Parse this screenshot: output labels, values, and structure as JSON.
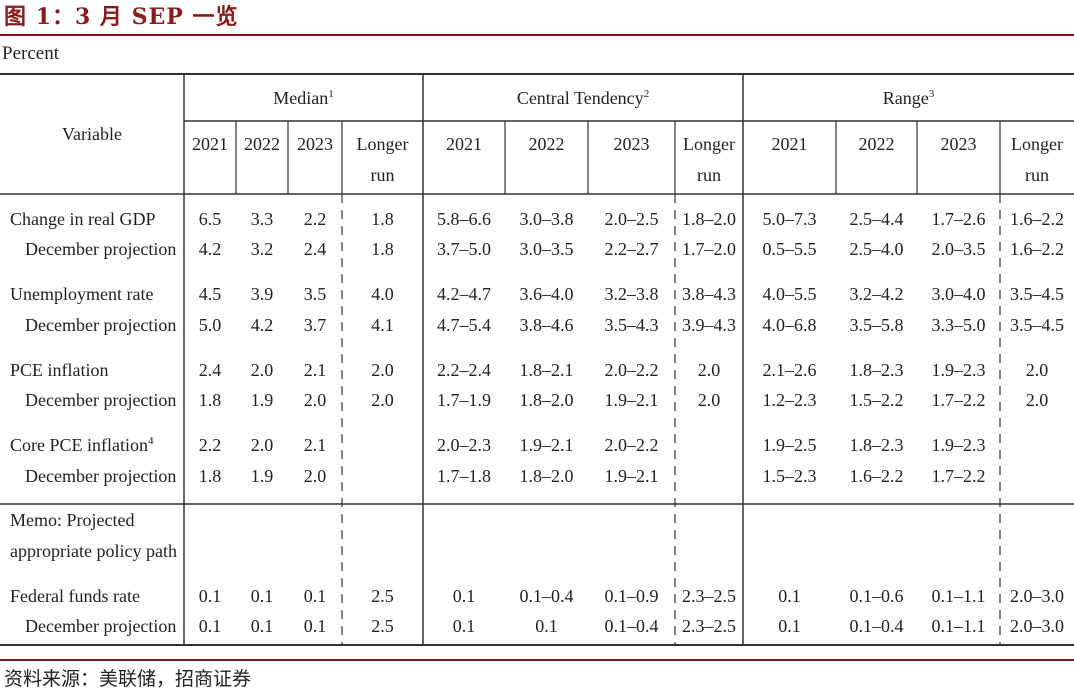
{
  "figure": {
    "title": "图 1：3 月 SEP 一览",
    "unit": "Percent",
    "source": "资料来源：美联储，招商证券"
  },
  "table": {
    "variable_header": "Variable",
    "groups": [
      {
        "label": "Median",
        "note": "1"
      },
      {
        "label": "Central Tendency",
        "note": "2"
      },
      {
        "label": "Range",
        "note": "3"
      }
    ],
    "years": [
      "2021",
      "2022",
      "2023"
    ],
    "longer_run": [
      "Longer",
      "run"
    ],
    "rows": [
      {
        "label": "Change in real GDP",
        "note": "",
        "indent": false,
        "cells": [
          "6.5",
          "3.3",
          "2.2",
          "1.8",
          "5.8–6.6",
          "3.0–3.8",
          "2.0–2.5",
          "1.8–2.0",
          "5.0–7.3",
          "2.5–4.4",
          "1.7–2.6",
          "1.6–2.2"
        ]
      },
      {
        "label": "December projection",
        "note": "",
        "indent": true,
        "cells": [
          "4.2",
          "3.2",
          "2.4",
          "1.8",
          "3.7–5.0",
          "3.0–3.5",
          "2.2–2.7",
          "1.7–2.0",
          "0.5–5.5",
          "2.5–4.0",
          "2.0–3.5",
          "1.6–2.2"
        ]
      },
      {
        "label": "Unemployment rate",
        "note": "",
        "indent": false,
        "cells": [
          "4.5",
          "3.9",
          "3.5",
          "4.0",
          "4.2–4.7",
          "3.6–4.0",
          "3.2–3.8",
          "3.8–4.3",
          "4.0–5.5",
          "3.2–4.2",
          "3.0–4.0",
          "3.5–4.5"
        ]
      },
      {
        "label": "December projection",
        "note": "",
        "indent": true,
        "cells": [
          "5.0",
          "4.2",
          "3.7",
          "4.1",
          "4.7–5.4",
          "3.8–4.6",
          "3.5–4.3",
          "3.9–4.3",
          "4.0–6.8",
          "3.5–5.8",
          "3.3–5.0",
          "3.5–4.5"
        ]
      },
      {
        "label": "PCE inflation",
        "note": "",
        "indent": false,
        "cells": [
          "2.4",
          "2.0",
          "2.1",
          "2.0",
          "2.2–2.4",
          "1.8–2.1",
          "2.0–2.2",
          "2.0",
          "2.1–2.6",
          "1.8–2.3",
          "1.9–2.3",
          "2.0"
        ]
      },
      {
        "label": "December projection",
        "note": "",
        "indent": true,
        "cells": [
          "1.8",
          "1.9",
          "2.0",
          "2.0",
          "1.7–1.9",
          "1.8–2.0",
          "1.9–2.1",
          "2.0",
          "1.2–2.3",
          "1.5–2.2",
          "1.7–2.2",
          "2.0"
        ]
      },
      {
        "label": "Core PCE inflation",
        "note": "4",
        "indent": false,
        "cells": [
          "2.2",
          "2.0",
          "2.1",
          "",
          "2.0–2.3",
          "1.9–2.1",
          "2.0–2.2",
          "",
          "1.9–2.5",
          "1.8–2.3",
          "1.9–2.3",
          ""
        ]
      },
      {
        "label": "December projection",
        "note": "",
        "indent": true,
        "cells": [
          "1.8",
          "1.9",
          "2.0",
          "",
          "1.7–1.8",
          "1.8–2.0",
          "1.9–2.1",
          "",
          "1.5–2.3",
          "1.6–2.2",
          "1.7–2.2",
          ""
        ]
      },
      {
        "label": "Federal funds rate",
        "note": "",
        "indent": false,
        "cells": [
          "0.1",
          "0.1",
          "0.1",
          "2.5",
          "0.1",
          "0.1–0.4",
          "0.1–0.9",
          "2.3–2.5",
          "0.1",
          "0.1–0.6",
          "0.1–1.1",
          "2.0–3.0"
        ]
      },
      {
        "label": "December projection",
        "note": "",
        "indent": true,
        "cells": [
          "0.1",
          "0.1",
          "0.1",
          "2.5",
          "0.1",
          "0.1",
          "0.1–0.4",
          "2.3–2.5",
          "0.1",
          "0.1–0.4",
          "0.1–1.1",
          "2.0–3.0"
        ]
      }
    ],
    "memo_lines": [
      "Memo: Projected",
      "appropriate policy path"
    ]
  }
}
